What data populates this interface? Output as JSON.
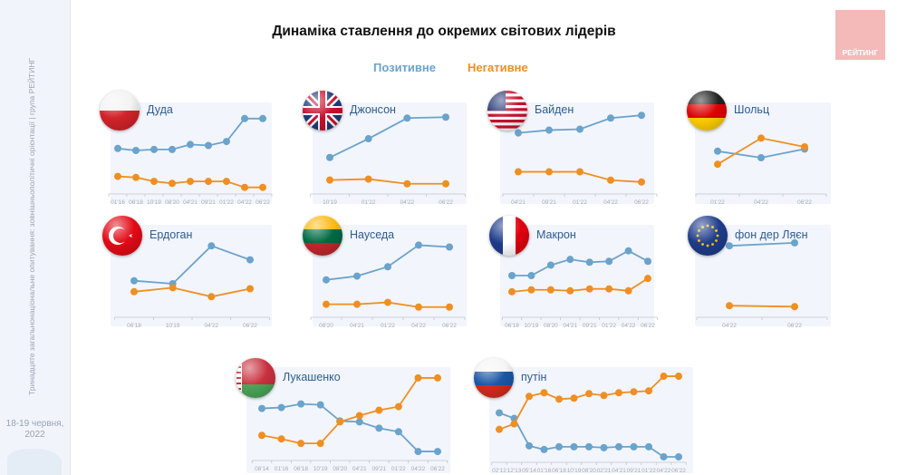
{
  "sidebar": {
    "vertical_text": "Тринадцяте загальнонаціональне опитування: зовнішньополітичні орієнтації | група РЕЙТИНГ",
    "date": "18-19 червня, 2022"
  },
  "logo": {
    "text": "РЕЙТИНГ",
    "color": "#f4b9b9"
  },
  "header": {
    "title": "Динаміка ставлення до окремих світових лідерів"
  },
  "legend": {
    "positive": "Позитивне",
    "negative": "Негативне"
  },
  "colors": {
    "positive": "#6aa3cc",
    "negative": "#ef8f22",
    "name": "#2e5c92"
  },
  "chart_data": [
    {
      "type": "line",
      "title": "Дуда",
      "flag": "poland-flag",
      "categories": [
        "01'16",
        "06'18",
        "10'19",
        "08'20",
        "04'21",
        "09'21",
        "01'22",
        "04'22",
        "06'22"
      ],
      "series": [
        {
          "name": "Позитивне",
          "values": [
            42,
            40,
            41,
            41,
            46,
            45,
            49,
            72,
            72
          ]
        },
        {
          "name": "Негативне",
          "values": [
            14,
            13,
            9,
            7,
            9,
            9,
            9,
            3,
            3
          ]
        }
      ],
      "ylim": [
        0,
        80
      ]
    },
    {
      "type": "line",
      "title": "Джонсон",
      "flag": "uk-flag",
      "categories": [
        "10'19",
        "01'22",
        "04'22",
        "06'22"
      ],
      "series": [
        {
          "name": "Позитивне",
          "values": [
            35,
            55,
            77,
            78
          ]
        },
        {
          "name": "Негативне",
          "values": [
            11,
            12,
            7,
            7
          ]
        }
      ],
      "ylim": [
        0,
        85
      ]
    },
    {
      "type": "line",
      "title": "Байден",
      "flag": "usa-flag",
      "categories": [
        "04'21",
        "09'21",
        "01'22",
        "04'22",
        "06'22"
      ],
      "series": [
        {
          "name": "Позитивне",
          "values": [
            62,
            65,
            66,
            78,
            81
          ]
        },
        {
          "name": "Негативне",
          "values": [
            20,
            20,
            20,
            11,
            9
          ]
        }
      ],
      "ylim": [
        0,
        90
      ]
    },
    {
      "type": "line",
      "title": "Шольц",
      "flag": "germany-flag",
      "categories": [
        "01'22",
        "04'22",
        "06'22"
      ],
      "series": [
        {
          "name": "Позитивне",
          "values": [
            36,
            30,
            38
          ]
        },
        {
          "name": "Негативне",
          "values": [
            24,
            48,
            40
          ]
        }
      ],
      "ylim": [
        0,
        70
      ]
    },
    {
      "type": "line",
      "title": "Ердоган",
      "flag": "turkey-flag",
      "categories": [
        "06'18",
        "10'19",
        "04'22",
        "06'22"
      ],
      "series": [
        {
          "name": "Позитивне",
          "values": [
            33,
            30,
            68,
            54
          ]
        },
        {
          "name": "Негативне",
          "values": [
            22,
            26,
            17,
            25
          ]
        }
      ],
      "ylim": [
        0,
        80
      ]
    },
    {
      "type": "line",
      "title": "Науседа",
      "flag": "lithuania-flag",
      "categories": [
        "08'20",
        "04'21",
        "01'22",
        "04'22",
        "06'22"
      ],
      "series": [
        {
          "name": "Позитивне",
          "values": [
            36,
            40,
            50,
            73,
            71
          ]
        },
        {
          "name": "Негативне",
          "values": [
            10,
            10,
            12,
            7,
            7
          ]
        }
      ],
      "ylim": [
        0,
        85
      ]
    },
    {
      "type": "line",
      "title": "Макрон",
      "flag": "france-flag",
      "categories": [
        "06'18",
        "10'19",
        "08'20",
        "04'21",
        "09'21",
        "01'22",
        "04'22",
        "06'22"
      ],
      "series": [
        {
          "name": "Позитивне",
          "values": [
            40,
            40,
            51,
            57,
            54,
            55,
            66,
            55
          ]
        },
        {
          "name": "Негативне",
          "values": [
            23,
            25,
            25,
            24,
            26,
            26,
            24,
            37
          ]
        }
      ],
      "ylim": [
        0,
        80
      ]
    },
    {
      "type": "line",
      "title": "фон дер Ляєн",
      "flag": "eu-flag",
      "categories": [
        "04'22",
        "06'22"
      ],
      "series": [
        {
          "name": "Позитивне",
          "values": [
            68,
            71
          ]
        },
        {
          "name": "Негативне",
          "values": [
            8,
            7
          ]
        }
      ],
      "ylim": [
        0,
        80
      ]
    },
    {
      "type": "line",
      "title": "Лукашенко",
      "flag": "belarus-flag",
      "categories": [
        "08'14",
        "01'16",
        "06'18",
        "10'19",
        "08'20",
        "04'21",
        "09'21",
        "01'22",
        "04'22",
        "06'22"
      ],
      "series": [
        {
          "name": "Позитивне",
          "values": [
            54,
            55,
            59,
            58,
            40,
            39,
            32,
            28,
            6,
            6
          ]
        },
        {
          "name": "Негативне",
          "values": [
            24,
            20,
            15,
            15,
            39,
            46,
            52,
            56,
            88,
            88
          ]
        }
      ],
      "ylim": [
        0,
        95
      ]
    },
    {
      "type": "line",
      "title": "путін",
      "flag": "russia-flag",
      "categories": [
        "02'12",
        "12'13",
        "05'14",
        "01'16",
        "06'18",
        "10'19",
        "08'20",
        "02'21",
        "04'21",
        "09'21",
        "01'22",
        "04'22",
        "06'22"
      ],
      "series": [
        {
          "name": "Позитивне",
          "values": [
            50,
            44,
            14,
            10,
            13,
            13,
            13,
            12,
            13,
            13,
            13,
            2,
            2
          ]
        },
        {
          "name": "Негативне",
          "values": [
            32,
            38,
            68,
            72,
            65,
            66,
            71,
            69,
            72,
            73,
            74,
            90,
            90
          ]
        }
      ],
      "ylim": [
        0,
        95
      ]
    }
  ]
}
